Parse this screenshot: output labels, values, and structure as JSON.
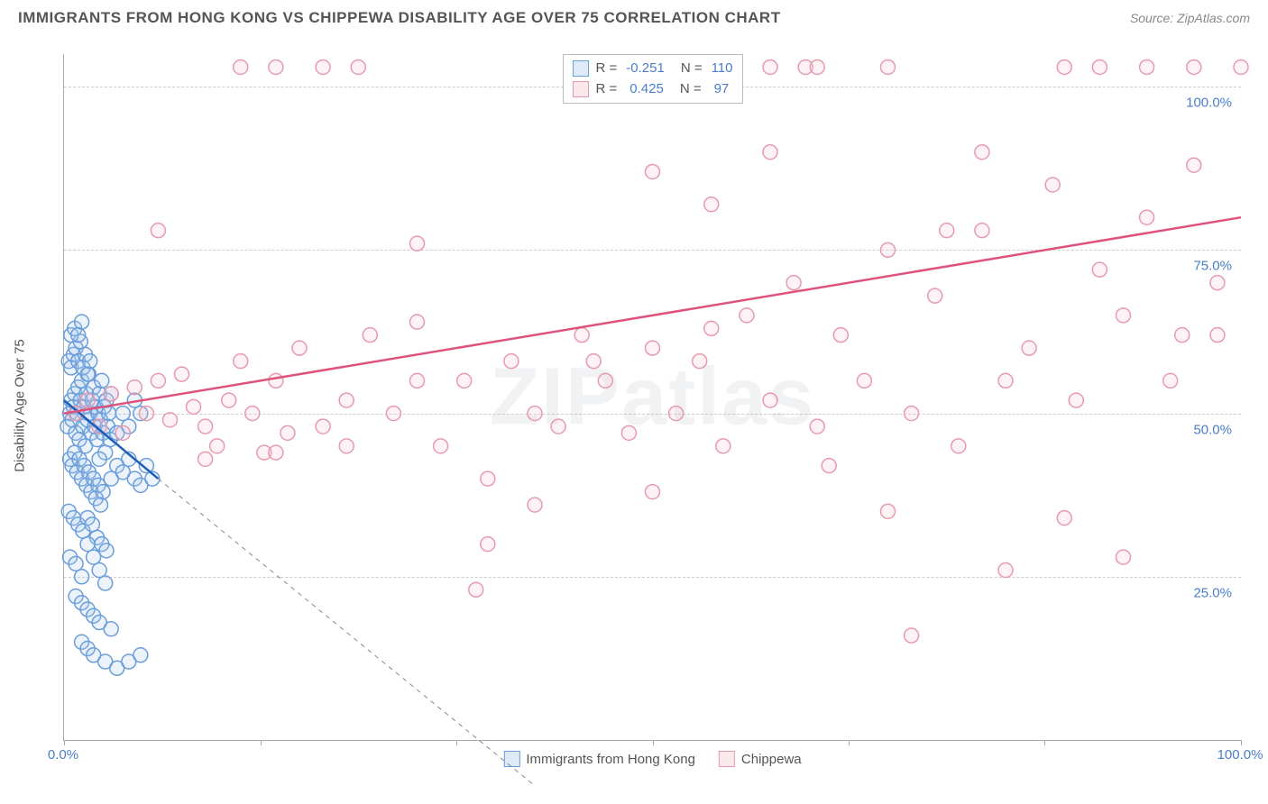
{
  "header": {
    "title": "IMMIGRANTS FROM HONG KONG VS CHIPPEWA DISABILITY AGE OVER 75 CORRELATION CHART",
    "source_label": "Source:",
    "source_name": "ZipAtlas.com"
  },
  "watermark": {
    "pre": "ZIP",
    "post": "atlas"
  },
  "chart": {
    "type": "scatter",
    "ylabel": "Disability Age Over 75",
    "xlim": [
      0,
      100
    ],
    "ylim": [
      0,
      105
    ],
    "xtick_positions": [
      0,
      16.67,
      33.33,
      50,
      66.67,
      83.33,
      100
    ],
    "xtick_labels": [
      "0.0%",
      "",
      "",
      "",
      "",
      "",
      "100.0%"
    ],
    "ytick_positions": [
      25,
      50,
      75,
      100
    ],
    "ytick_labels": [
      "25.0%",
      "50.0%",
      "75.0%",
      "100.0%"
    ],
    "grid_color": "#cccccc",
    "axis_color": "#aaaaaa",
    "label_fontsize": 15,
    "tick_color": "#4a7ec9",
    "marker_radius": 8,
    "marker_stroke_width": 1.5,
    "marker_fill_opacity": 0.22,
    "trend_line_width": 2.5,
    "series": [
      {
        "id": "hk",
        "name": "Immigrants from Hong Kong",
        "color_stroke": "#6a9edb",
        "color_fill": "#a9c8ec",
        "color_line": "#1d5fb8",
        "R": "-0.251",
        "N": "110",
        "trend": {
          "x1": 0,
          "y1": 52,
          "x2": 8,
          "y2": 40,
          "extend_x2": 40,
          "extend_y2": -7
        },
        "points": [
          [
            0.3,
            48
          ],
          [
            0.5,
            50
          ],
          [
            0.6,
            52
          ],
          [
            0.7,
            49
          ],
          [
            0.8,
            51
          ],
          [
            0.9,
            53
          ],
          [
            1.0,
            47
          ],
          [
            1.1,
            50
          ],
          [
            1.2,
            54
          ],
          [
            1.3,
            46
          ],
          [
            1.4,
            52
          ],
          [
            1.5,
            55
          ],
          [
            1.6,
            48
          ],
          [
            1.7,
            51
          ],
          [
            1.8,
            45
          ],
          [
            1.9,
            53
          ],
          [
            2.0,
            49
          ],
          [
            2.1,
            56
          ],
          [
            2.2,
            50
          ],
          [
            2.3,
            47
          ],
          [
            2.4,
            52
          ],
          [
            2.5,
            54
          ],
          [
            2.6,
            48
          ],
          [
            2.7,
            51
          ],
          [
            2.8,
            46
          ],
          [
            2.9,
            50
          ],
          [
            3.0,
            53
          ],
          [
            3.1,
            49
          ],
          [
            3.2,
            55
          ],
          [
            3.3,
            47
          ],
          [
            3.4,
            51
          ],
          [
            3.5,
            44
          ],
          [
            3.6,
            52
          ],
          [
            3.7,
            48
          ],
          [
            3.8,
            50
          ],
          [
            3.9,
            46
          ],
          [
            4.0,
            53
          ],
          [
            0.4,
            58
          ],
          [
            0.6,
            57
          ],
          [
            0.8,
            59
          ],
          [
            1.0,
            60
          ],
          [
            1.2,
            58
          ],
          [
            1.4,
            61
          ],
          [
            1.6,
            57
          ],
          [
            1.8,
            59
          ],
          [
            2.0,
            56
          ],
          [
            2.2,
            58
          ],
          [
            0.5,
            43
          ],
          [
            0.7,
            42
          ],
          [
            0.9,
            44
          ],
          [
            1.1,
            41
          ],
          [
            1.3,
            43
          ],
          [
            1.5,
            40
          ],
          [
            1.7,
            42
          ],
          [
            1.9,
            39
          ],
          [
            2.1,
            41
          ],
          [
            2.3,
            38
          ],
          [
            2.5,
            40
          ],
          [
            2.7,
            37
          ],
          [
            2.9,
            39
          ],
          [
            3.1,
            36
          ],
          [
            3.3,
            38
          ],
          [
            0.6,
            62
          ],
          [
            0.9,
            63
          ],
          [
            1.2,
            62
          ],
          [
            1.5,
            64
          ],
          [
            0.4,
            35
          ],
          [
            0.8,
            34
          ],
          [
            1.2,
            33
          ],
          [
            1.6,
            32
          ],
          [
            2.0,
            34
          ],
          [
            2.4,
            33
          ],
          [
            2.8,
            31
          ],
          [
            3.2,
            30
          ],
          [
            3.6,
            29
          ],
          [
            4.0,
            40
          ],
          [
            4.5,
            42
          ],
          [
            5.0,
            41
          ],
          [
            5.5,
            43
          ],
          [
            6.0,
            40
          ],
          [
            6.5,
            39
          ],
          [
            0.5,
            28
          ],
          [
            1.0,
            27
          ],
          [
            1.5,
            25
          ],
          [
            2.0,
            30
          ],
          [
            2.5,
            28
          ],
          [
            3.0,
            26
          ],
          [
            3.5,
            24
          ],
          [
            1.0,
            22
          ],
          [
            1.5,
            21
          ],
          [
            2.0,
            20
          ],
          [
            2.5,
            19
          ],
          [
            1.5,
            15
          ],
          [
            2.0,
            14
          ],
          [
            3.0,
            18
          ],
          [
            4.0,
            17
          ],
          [
            2.5,
            13
          ],
          [
            3.5,
            12
          ],
          [
            4.5,
            11
          ],
          [
            5.5,
            12
          ],
          [
            6.5,
            13
          ],
          [
            3.0,
            43
          ],
          [
            4.5,
            47
          ],
          [
            5.0,
            50
          ],
          [
            5.5,
            48
          ],
          [
            6.0,
            52
          ],
          [
            6.5,
            50
          ],
          [
            7.0,
            42
          ],
          [
            7.5,
            40
          ]
        ]
      },
      {
        "id": "chippewa",
        "name": "Chippewa",
        "color_stroke": "#e89aad",
        "color_fill": "#f5c3d0",
        "color_line": "#e0527a",
        "R": "0.425",
        "N": "97",
        "trend": {
          "x1": 0,
          "y1": 50,
          "x2": 100,
          "y2": 80
        },
        "points": [
          [
            1,
            50
          ],
          [
            2,
            52
          ],
          [
            3,
            48
          ],
          [
            4,
            53
          ],
          [
            5,
            47
          ],
          [
            6,
            54
          ],
          [
            7,
            50
          ],
          [
            8,
            55
          ],
          [
            9,
            49
          ],
          [
            10,
            56
          ],
          [
            11,
            51
          ],
          [
            12,
            48
          ],
          [
            13,
            45
          ],
          [
            14,
            52
          ],
          [
            15,
            58
          ],
          [
            16,
            50
          ],
          [
            17,
            44
          ],
          [
            18,
            55
          ],
          [
            19,
            47
          ],
          [
            20,
            60
          ],
          [
            22,
            48
          ],
          [
            24,
            52
          ],
          [
            26,
            62
          ],
          [
            28,
            50
          ],
          [
            30,
            64
          ],
          [
            32,
            45
          ],
          [
            34,
            55
          ],
          [
            36,
            40
          ],
          [
            38,
            58
          ],
          [
            40,
            50
          ],
          [
            42,
            48
          ],
          [
            44,
            62
          ],
          [
            46,
            55
          ],
          [
            48,
            47
          ],
          [
            50,
            60
          ],
          [
            52,
            50
          ],
          [
            54,
            58
          ],
          [
            56,
            45
          ],
          [
            58,
            65
          ],
          [
            60,
            52
          ],
          [
            62,
            70
          ],
          [
            64,
            48
          ],
          [
            66,
            62
          ],
          [
            68,
            55
          ],
          [
            70,
            75
          ],
          [
            72,
            50
          ],
          [
            74,
            68
          ],
          [
            76,
            45
          ],
          [
            78,
            78
          ],
          [
            80,
            55
          ],
          [
            82,
            60
          ],
          [
            84,
            85
          ],
          [
            86,
            52
          ],
          [
            88,
            72
          ],
          [
            90,
            65
          ],
          [
            92,
            80
          ],
          [
            94,
            55
          ],
          [
            96,
            88
          ],
          [
            98,
            70
          ],
          [
            8,
            78
          ],
          [
            15,
            103
          ],
          [
            18,
            103
          ],
          [
            22,
            103
          ],
          [
            60,
            103
          ],
          [
            63,
            103
          ],
          [
            64,
            103
          ],
          [
            70,
            103
          ],
          [
            85,
            103
          ],
          [
            88,
            103
          ],
          [
            92,
            103
          ],
          [
            96,
            103
          ],
          [
            100,
            103
          ],
          [
            30,
            76
          ],
          [
            35,
            23
          ],
          [
            40,
            36
          ],
          [
            45,
            58
          ],
          [
            50,
            38
          ],
          [
            55,
            82
          ],
          [
            60,
            90
          ],
          [
            65,
            42
          ],
          [
            70,
            35
          ],
          [
            75,
            78
          ],
          [
            80,
            26
          ],
          [
            85,
            34
          ],
          [
            90,
            28
          ],
          [
            95,
            62
          ],
          [
            98,
            62
          ],
          [
            25,
            103
          ],
          [
            50,
            87
          ],
          [
            55,
            63
          ],
          [
            12,
            43
          ],
          [
            18,
            44
          ],
          [
            24,
            45
          ],
          [
            30,
            55
          ],
          [
            36,
            30
          ],
          [
            72,
            16
          ],
          [
            78,
            90
          ]
        ]
      }
    ]
  },
  "bottom_legend": {
    "items": [
      {
        "label": "Immigrants from Hong Kong",
        "stroke": "#6a9edb",
        "fill": "#a9c8ec"
      },
      {
        "label": "Chippewa",
        "stroke": "#e89aad",
        "fill": "#f5c3d0"
      }
    ]
  }
}
